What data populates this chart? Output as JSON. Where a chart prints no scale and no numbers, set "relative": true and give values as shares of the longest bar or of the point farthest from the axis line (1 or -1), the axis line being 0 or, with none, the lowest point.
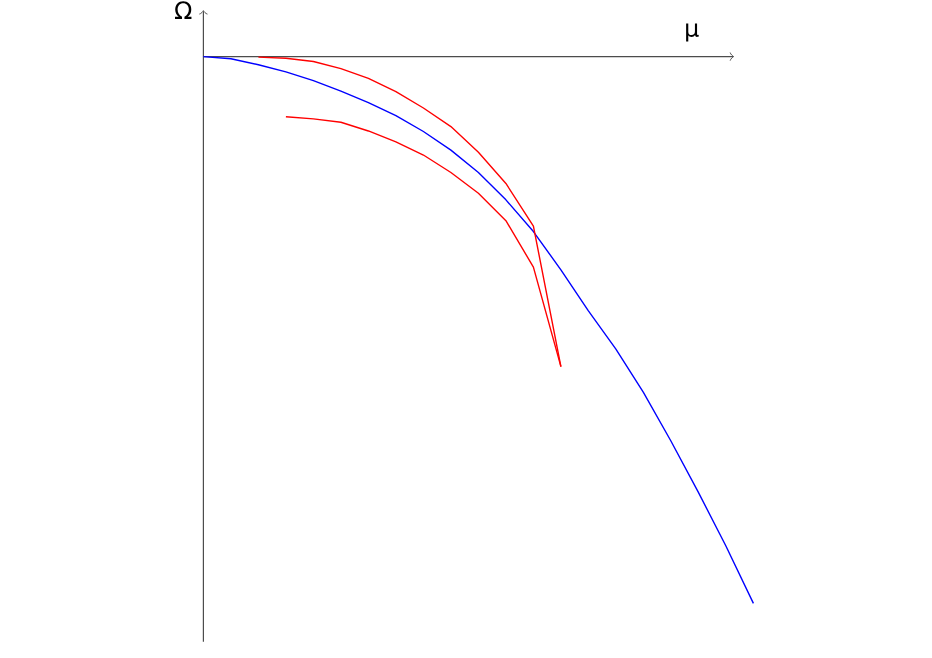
{
  "chart_data": {
    "type": "line",
    "xlabel": "μ",
    "ylabel": "Ω",
    "relative": true,
    "categories": [
      null,
      null,
      null,
      null,
      null,
      null,
      null,
      null,
      null,
      null,
      null,
      null,
      null,
      null,
      null,
      null,
      null,
      null,
      null,
      null,
      null
    ],
    "series": [
      {
        "color": "#0000ff",
        "values": [
          0,
          -0.004,
          -0.015,
          -0.028,
          -0.044,
          -0.063,
          -0.084,
          -0.108,
          -0.137,
          -0.171,
          -0.212,
          -0.262,
          -0.32,
          -0.39,
          -0.465,
          -0.535,
          -0.614,
          -0.703,
          -0.797,
          -0.895,
          -1
        ]
      },
      {
        "color": "#ff0000",
        "values": [
          null,
          null,
          -0.001,
          -0.003,
          -0.009,
          -0.022,
          -0.04,
          -0.064,
          -0.094,
          -0.128,
          -0.175,
          -0.232,
          -0.31,
          -0.567,
          null,
          null,
          null,
          null,
          null,
          null,
          null
        ]
      },
      {
        "color": "#ff0000",
        "values": [
          null,
          null,
          null,
          -0.11,
          -0.114,
          -0.12,
          -0.136,
          -0.156,
          -0.18,
          -0.212,
          -0.25,
          -0.3,
          -0.385,
          -0.567,
          null,
          null,
          null,
          null,
          null,
          null,
          null
        ]
      }
    ]
  }
}
